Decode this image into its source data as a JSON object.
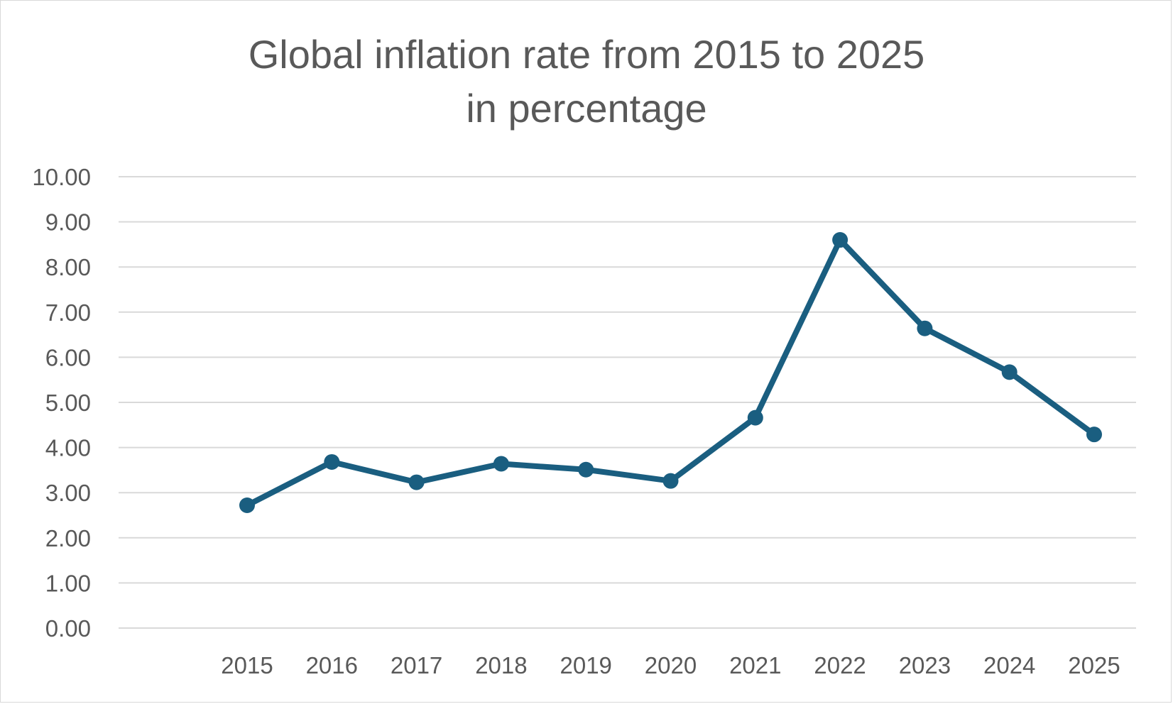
{
  "chart_data": {
    "type": "line",
    "title_line1": "Global inflation rate from 2015 to 2025",
    "title_line2": "in percentage",
    "xlabel": "",
    "ylabel": "",
    "categories": [
      "2015",
      "2016",
      "2017",
      "2018",
      "2019",
      "2020",
      "2021",
      "2022",
      "2023",
      "2024",
      "2025"
    ],
    "series": [
      {
        "values": [
          2.72,
          3.68,
          3.23,
          3.64,
          3.51,
          3.26,
          4.66,
          8.6,
          6.64,
          5.67,
          4.29
        ],
        "color": "#1a5e80"
      }
    ],
    "ylim": [
      0,
      10
    ],
    "yticks": [
      "0.00",
      "1.00",
      "2.00",
      "3.00",
      "4.00",
      "5.00",
      "6.00",
      "7.00",
      "8.00",
      "9.00",
      "10.00"
    ],
    "grid": true,
    "legend": "none"
  }
}
